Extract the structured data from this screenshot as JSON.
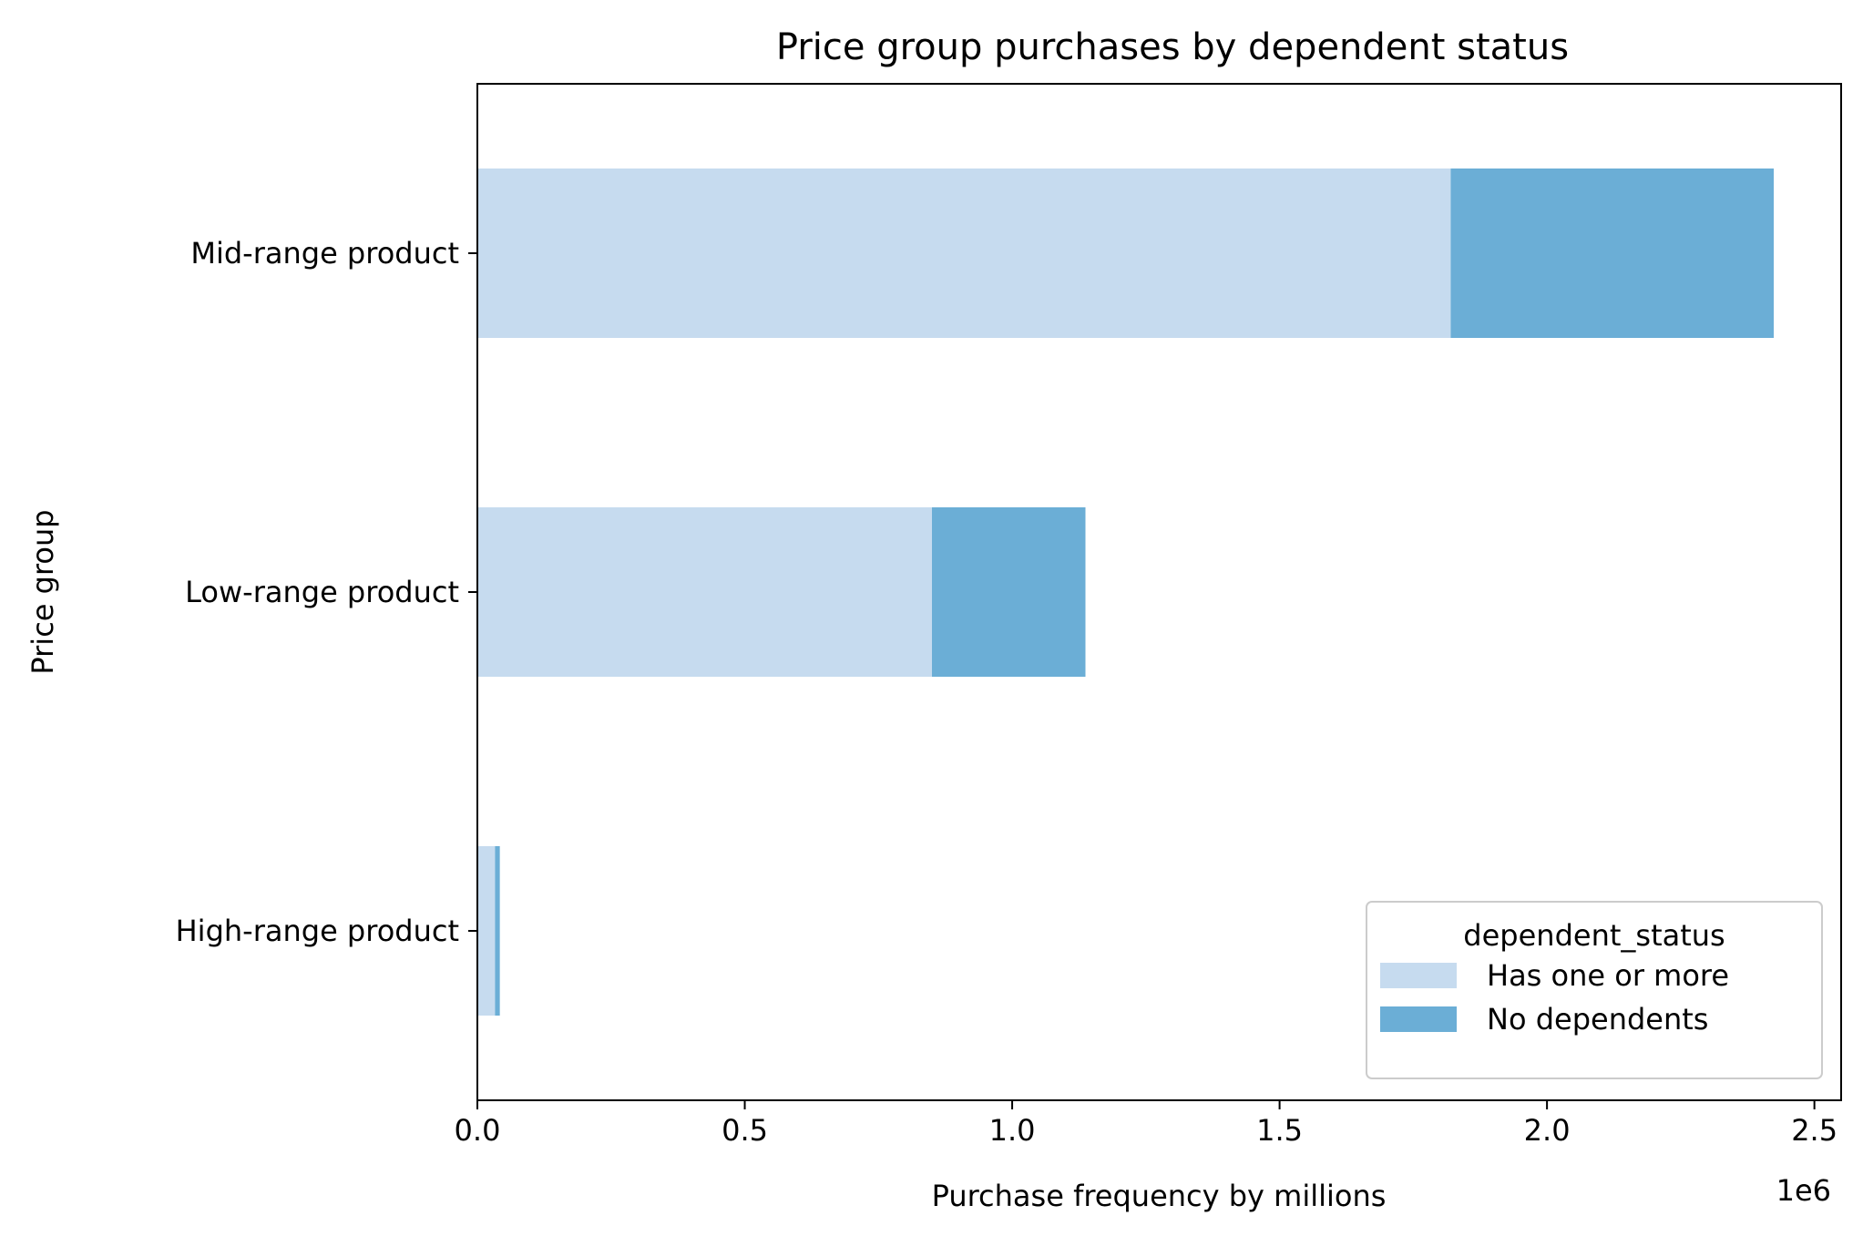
{
  "chart_data": {
    "type": "bar",
    "orientation": "horizontal",
    "stacked": true,
    "title": "Price group purchases by dependent status",
    "xlabel": "Purchase frequency by millions",
    "ylabel": "Price group",
    "x_offset_label": "1e6",
    "categories": [
      "Mid-range product",
      "Low-range product",
      "High-range product"
    ],
    "series": [
      {
        "name": "Has one or more",
        "color": "#c6dbef",
        "values": [
          1820000,
          850000,
          33000
        ]
      },
      {
        "name": "No dependents",
        "color": "#6baed6",
        "values": [
          604000,
          287000,
          9000
        ]
      }
    ],
    "xlim": [
      0,
      2550000
    ],
    "xticks": [
      0,
      500000,
      1000000,
      1500000,
      2000000,
      2500000
    ],
    "xtick_labels": [
      "0.0",
      "0.5",
      "1.0",
      "1.5",
      "2.0",
      "2.5"
    ],
    "legend": {
      "title": "dependent_status",
      "position": "lower-right"
    },
    "grid": false
  }
}
